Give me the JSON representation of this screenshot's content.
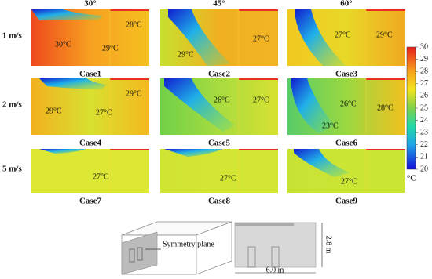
{
  "columns": [
    "30°",
    "45°",
    "60°"
  ],
  "rows": [
    "1 m/s",
    "2 m/s",
    "5 m/s"
  ],
  "cases": [
    {
      "label": "Case1",
      "annotations": [
        "28°C",
        "30°C",
        "29°C"
      ]
    },
    {
      "label": "Case2",
      "annotations": [
        "27°C",
        "29°C"
      ]
    },
    {
      "label": "Case3",
      "annotations": [
        "27°C",
        "29°C"
      ]
    },
    {
      "label": "Case4",
      "annotations": [
        "29°C",
        "29°C",
        "27°C"
      ]
    },
    {
      "label": "Case5",
      "annotations": [
        "26°C",
        "27°C"
      ]
    },
    {
      "label": "Case6",
      "annotations": [
        "26°C",
        "28°C",
        "23°C"
      ]
    },
    {
      "label": "Case7",
      "annotations": [
        "27°C"
      ]
    },
    {
      "label": "Case8",
      "annotations": [
        "27°C"
      ]
    },
    {
      "label": "Case9",
      "annotations": [
        "27°C"
      ]
    }
  ],
  "colorbar": {
    "ticks": [
      30,
      29,
      28,
      27,
      26,
      25,
      24,
      23,
      22,
      21,
      20
    ],
    "unit": "°C"
  },
  "schematic": {
    "plane_label": "Symmetry plane",
    "height_label": "2.8 m",
    "width_label": "6.0 m"
  }
}
